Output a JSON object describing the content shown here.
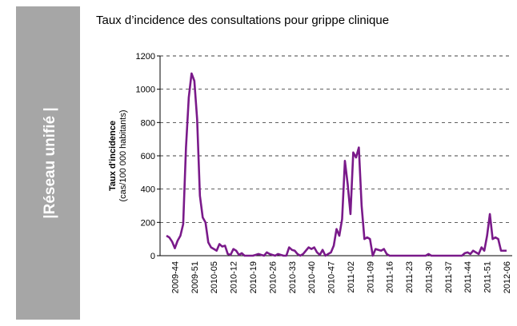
{
  "sidebar": {
    "label": "|Réseau unifié |"
  },
  "chart_data": {
    "type": "line",
    "title": "Taux d’incidence des consultations pour grippe clinique",
    "ylabel": "Taux d'incidence",
    "ylabel_unit": "(cas/100 000 habitants)",
    "categories": [
      null,
      null,
      null,
      "2009-44",
      null,
      null,
      null,
      null,
      null,
      null,
      "2009-51",
      null,
      null,
      null,
      null,
      null,
      null,
      "2010-05",
      null,
      null,
      null,
      null,
      null,
      null,
      "2010-12",
      null,
      null,
      null,
      null,
      null,
      null,
      "2010-19",
      null,
      null,
      null,
      null,
      null,
      null,
      "2010-26",
      null,
      null,
      null,
      null,
      null,
      null,
      "2010-33",
      null,
      null,
      null,
      null,
      null,
      null,
      "2010-40",
      null,
      null,
      null,
      null,
      null,
      null,
      "2010-47",
      null,
      null,
      null,
      null,
      null,
      null,
      "2011-02",
      null,
      null,
      null,
      null,
      null,
      null,
      "2011-09",
      null,
      null,
      null,
      null,
      null,
      null,
      "2011-16",
      null,
      null,
      null,
      null,
      null,
      null,
      "2011-23",
      null,
      null,
      null,
      null,
      null,
      null,
      "2011-30",
      null,
      null,
      null,
      null,
      null,
      null,
      "2011-37",
      null,
      null,
      null,
      null,
      null,
      null,
      "2011-44",
      null,
      null,
      null,
      null,
      null,
      null,
      "2011-51",
      null,
      null,
      null,
      null,
      null,
      null,
      "2012-06"
    ],
    "values": [
      120,
      110,
      85,
      45,
      90,
      120,
      190,
      650,
      950,
      1095,
      1050,
      820,
      360,
      230,
      200,
      80,
      50,
      40,
      30,
      70,
      55,
      60,
      10,
      5,
      40,
      30,
      5,
      15,
      0,
      0,
      0,
      0,
      5,
      10,
      5,
      0,
      20,
      10,
      5,
      0,
      10,
      5,
      0,
      0,
      50,
      35,
      30,
      10,
      0,
      10,
      30,
      50,
      40,
      50,
      20,
      5,
      35,
      0,
      10,
      20,
      60,
      160,
      120,
      220,
      570,
      430,
      250,
      620,
      590,
      650,
      300,
      100,
      110,
      100,
      0,
      40,
      35,
      30,
      40,
      10,
      0,
      0,
      0,
      0,
      0,
      0,
      0,
      0,
      0,
      0,
      0,
      0,
      0,
      0,
      10,
      0,
      0,
      0,
      0,
      0,
      0,
      0,
      0,
      0,
      0,
      0,
      0,
      15,
      20,
      10,
      30,
      20,
      10,
      50,
      30,
      120,
      250,
      100,
      110,
      100,
      30,
      30,
      30
    ],
    "color": "#7a1a8a",
    "ylim": [
      0,
      1200
    ],
    "yticks": [
      0,
      200,
      400,
      600,
      800,
      1000,
      1200
    ],
    "grid": true
  }
}
